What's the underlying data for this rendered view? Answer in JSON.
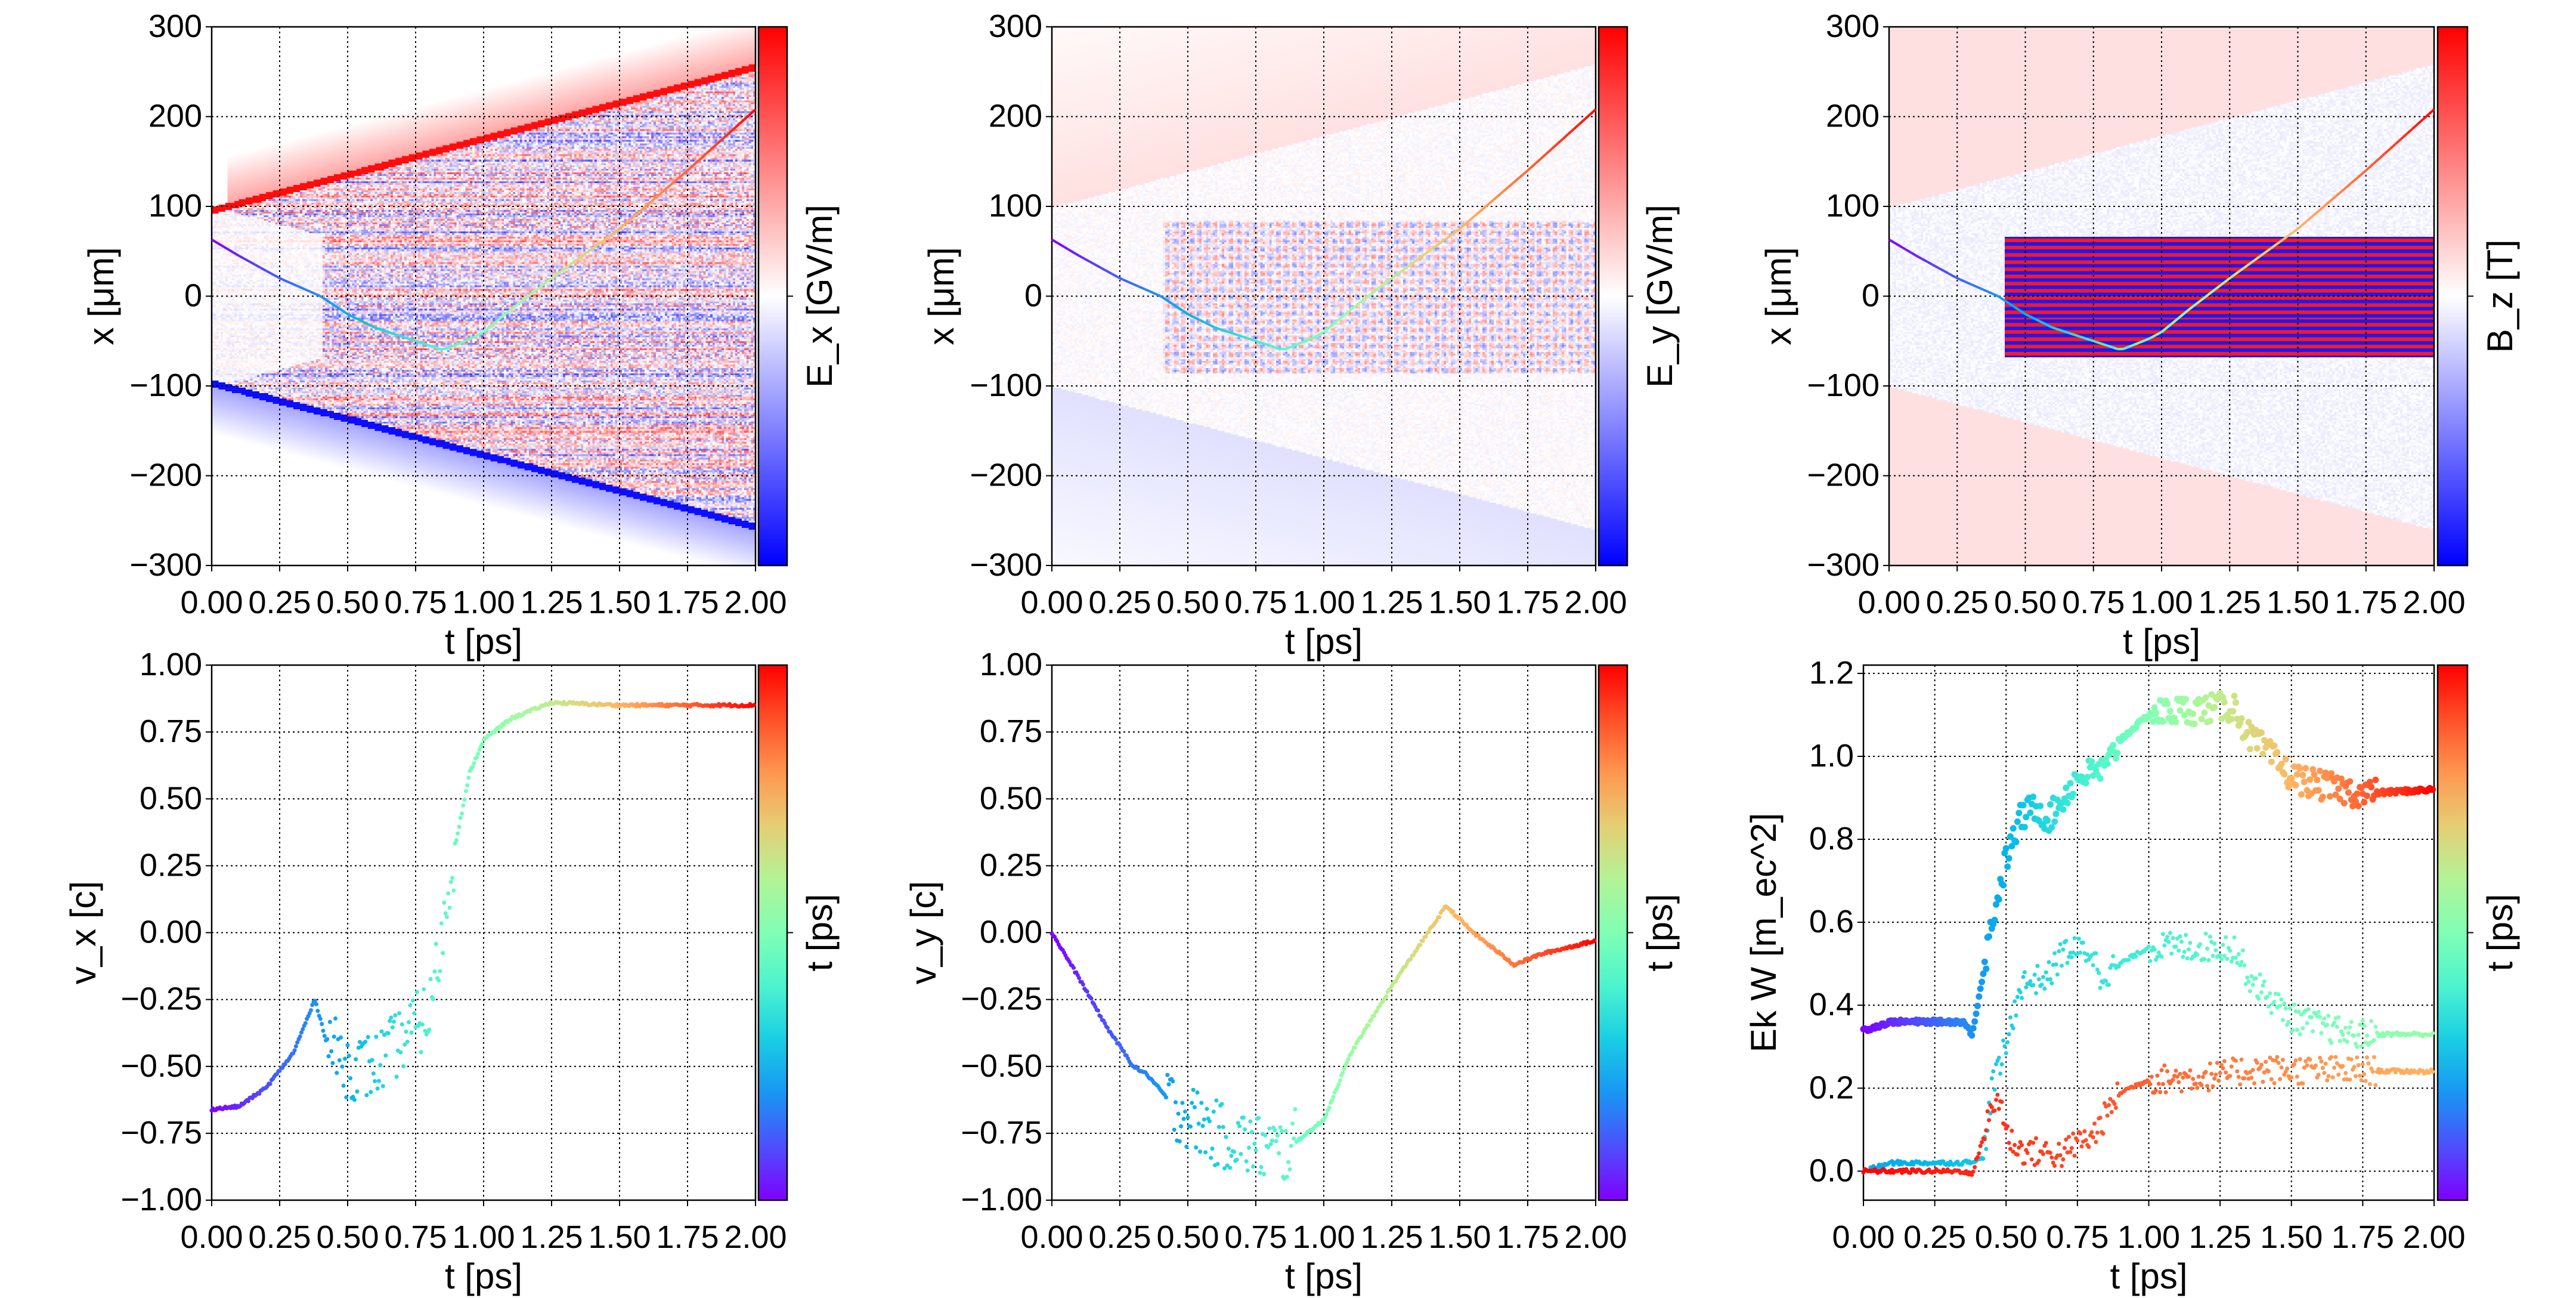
{
  "chart_data": [
    {
      "id": "ex",
      "type": "heatmap",
      "colormap": "bwr",
      "xlabel": "t  [ps]",
      "ylabel": "x  [μm]",
      "colorbar_label": "E_x  [GV/m]",
      "xlim": [
        0,
        2
      ],
      "ylim": [
        -300,
        300
      ],
      "xticks": [
        "0.00",
        "0.25",
        "0.50",
        "0.75",
        "1.00",
        "1.25",
        "1.50",
        "1.75",
        "2.00"
      ],
      "yticks": [
        "−300",
        "−200",
        "−100",
        "0",
        "100",
        "200",
        "300"
      ],
      "grid": true,
      "overlay_trajectory": {
        "t": [
          0,
          0.1,
          0.25,
          0.4,
          0.5,
          0.6,
          0.75,
          0.85,
          0.95,
          1.0,
          1.1,
          1.25,
          1.5,
          1.75,
          2.0
        ],
        "x": [
          63,
          45,
          20,
          0,
          -20,
          -35,
          -50,
          -60,
          -48,
          -40,
          -15,
          20,
          75,
          140,
          208
        ],
        "colormap": "rainbow"
      }
    },
    {
      "id": "ey",
      "type": "heatmap",
      "colormap": "bwr",
      "xlabel": "t  [ps]",
      "ylabel": "x  [μm]",
      "colorbar_label": "E_y  [GV/m]",
      "xlim": [
        0,
        2
      ],
      "ylim": [
        -300,
        300
      ],
      "xticks": [
        "0.00",
        "0.25",
        "0.50",
        "0.75",
        "1.00",
        "1.25",
        "1.50",
        "1.75",
        "2.00"
      ],
      "yticks": [
        "−300",
        "−200",
        "−100",
        "0",
        "100",
        "200",
        "300"
      ],
      "grid": true,
      "overlay_trajectory": {
        "t": [
          0,
          0.1,
          0.25,
          0.4,
          0.5,
          0.6,
          0.75,
          0.85,
          0.95,
          1.0,
          1.1,
          1.25,
          1.5,
          1.75,
          2.0
        ],
        "x": [
          63,
          45,
          20,
          0,
          -20,
          -35,
          -50,
          -60,
          -48,
          -40,
          -15,
          20,
          75,
          140,
          208
        ],
        "colormap": "rainbow"
      }
    },
    {
      "id": "bz",
      "type": "heatmap",
      "colormap": "bwr",
      "xlabel": "t  [ps]",
      "ylabel": "x  [μm]",
      "colorbar_label": "B_z  [T]",
      "xlim": [
        0,
        2
      ],
      "ylim": [
        -300,
        300
      ],
      "xticks": [
        "0.00",
        "0.25",
        "0.50",
        "0.75",
        "1.00",
        "1.25",
        "1.50",
        "1.75",
        "2.00"
      ],
      "yticks": [
        "−300",
        "−200",
        "−100",
        "0",
        "100",
        "200",
        "300"
      ],
      "grid": true,
      "overlay_trajectory": {
        "t": [
          0,
          0.1,
          0.25,
          0.4,
          0.5,
          0.6,
          0.75,
          0.85,
          0.95,
          1.0,
          1.1,
          1.25,
          1.5,
          1.75,
          2.0
        ],
        "x": [
          63,
          45,
          20,
          0,
          -20,
          -35,
          -50,
          -60,
          -48,
          -40,
          -15,
          20,
          75,
          140,
          208
        ],
        "colormap": "rainbow"
      }
    },
    {
      "id": "vx",
      "type": "scatter",
      "xlabel": "t  [ps]",
      "ylabel": "v_x [c]",
      "colorbar_label": "t  [ps]",
      "colormap": "rainbow",
      "xlim": [
        0,
        2
      ],
      "ylim": [
        -1,
        1
      ],
      "xticks": [
        "0.00",
        "0.25",
        "0.50",
        "0.75",
        "1.00",
        "1.25",
        "1.50",
        "1.75",
        "2.00"
      ],
      "yticks": [
        "−1.00",
        "−0.75",
        "−0.50",
        "−0.25",
        "0.00",
        "0.25",
        "0.50",
        "0.75",
        "1.00"
      ],
      "grid": true,
      "series": [
        {
          "t": [
            0,
            0.1,
            0.2,
            0.3,
            0.38,
            0.42,
            0.5,
            0.6,
            0.7,
            0.8,
            0.85,
            0.9,
            0.95,
            1.0,
            1.1,
            1.25,
            1.5,
            2.0
          ],
          "v": [
            -0.66,
            -0.65,
            -0.58,
            -0.45,
            -0.25,
            -0.4,
            -0.5,
            -0.5,
            -0.4,
            -0.3,
            0.0,
            0.35,
            0.6,
            0.72,
            0.8,
            0.86,
            0.85,
            0.85
          ]
        }
      ]
    },
    {
      "id": "vy",
      "type": "scatter",
      "xlabel": "t  [ps]",
      "ylabel": "v_y [c]",
      "colorbar_label": "t  [ps]",
      "colormap": "rainbow",
      "xlim": [
        0,
        2
      ],
      "ylim": [
        -1,
        1
      ],
      "xticks": [
        "0.00",
        "0.25",
        "0.50",
        "0.75",
        "1.00",
        "1.25",
        "1.50",
        "1.75",
        "2.00"
      ],
      "yticks": [
        "−1.00",
        "−0.75",
        "−0.50",
        "−0.25",
        "0.00",
        "0.25",
        "0.50",
        "0.75",
        "1.00"
      ],
      "grid": true,
      "series": [
        {
          "t": [
            0,
            0.1,
            0.2,
            0.3,
            0.35,
            0.45,
            0.6,
            0.75,
            0.85,
            1.0,
            1.1,
            1.25,
            1.35,
            1.45,
            1.55,
            1.7,
            1.8,
            2.0
          ],
          "v": [
            0,
            -0.17,
            -0.35,
            -0.5,
            -0.53,
            -0.65,
            -0.75,
            -0.8,
            -0.82,
            -0.7,
            -0.45,
            -0.2,
            -0.05,
            0.1,
            0.0,
            -0.12,
            -0.08,
            -0.03
          ]
        }
      ]
    },
    {
      "id": "energy",
      "type": "scatter",
      "xlabel": "t  [ps]",
      "ylabel": "Ek W [m_ec^2]",
      "colorbar_label": "t  [ps]",
      "colormap": "rainbow",
      "xlim": [
        0,
        2
      ],
      "ylim": [
        -0.07,
        1.22
      ],
      "xticks": [
        "0.00",
        "0.25",
        "0.50",
        "0.75",
        "1.00",
        "1.25",
        "1.50",
        "1.75",
        "2.00"
      ],
      "yticks": [
        "0.0",
        "0.2",
        "0.4",
        "0.6",
        "0.8",
        "1.0",
        "1.2"
      ],
      "grid": true,
      "series": [
        {
          "t": [
            0,
            0.1,
            0.35,
            0.38,
            0.4,
            0.45,
            0.5,
            0.55,
            0.6,
            0.65,
            0.7,
            0.75,
            0.85,
            0.9,
            1.0,
            1.1,
            1.3,
            1.35,
            1.4,
            1.5,
            1.6,
            1.75,
            2.0
          ],
          "v": [
            0.34,
            0.36,
            0.36,
            0.33,
            0.4,
            0.6,
            0.75,
            0.85,
            0.88,
            0.85,
            0.9,
            0.95,
            0.97,
            1.04,
            1.1,
            1.11,
            1.12,
            1.05,
            1.02,
            0.95,
            0.93,
            0.91,
            0.92
          ],
          "color_range": [
            0.0,
            1.0
          ]
        },
        {
          "t": [
            0,
            0.1,
            0.35,
            0.42,
            0.45,
            0.5,
            0.55,
            0.65,
            0.7,
            0.8,
            0.83,
            0.9,
            1.0,
            1.3,
            1.35,
            1.45,
            1.5,
            1.7,
            2.0
          ],
          "v": [
            0.0,
            0.02,
            0.02,
            0.03,
            0.2,
            0.3,
            0.45,
            0.47,
            0.53,
            0.53,
            0.47,
            0.5,
            0.54,
            0.54,
            0.47,
            0.4,
            0.37,
            0.33,
            0.33
          ],
          "color_range": [
            0.22,
            0.55
          ]
        },
        {
          "t": [
            0,
            0.35,
            0.38,
            0.45,
            0.48,
            0.5,
            0.55,
            0.7,
            0.75,
            0.8,
            0.9,
            1.0,
            1.25,
            1.35,
            2.0
          ],
          "v": [
            0,
            0,
            -0.01,
            0.15,
            0.18,
            0.09,
            0.05,
            0.04,
            0.07,
            0.08,
            0.19,
            0.22,
            0.23,
            0.245,
            0.24
          ],
          "color_range": [
            1.0,
            0.75
          ]
        }
      ]
    }
  ]
}
